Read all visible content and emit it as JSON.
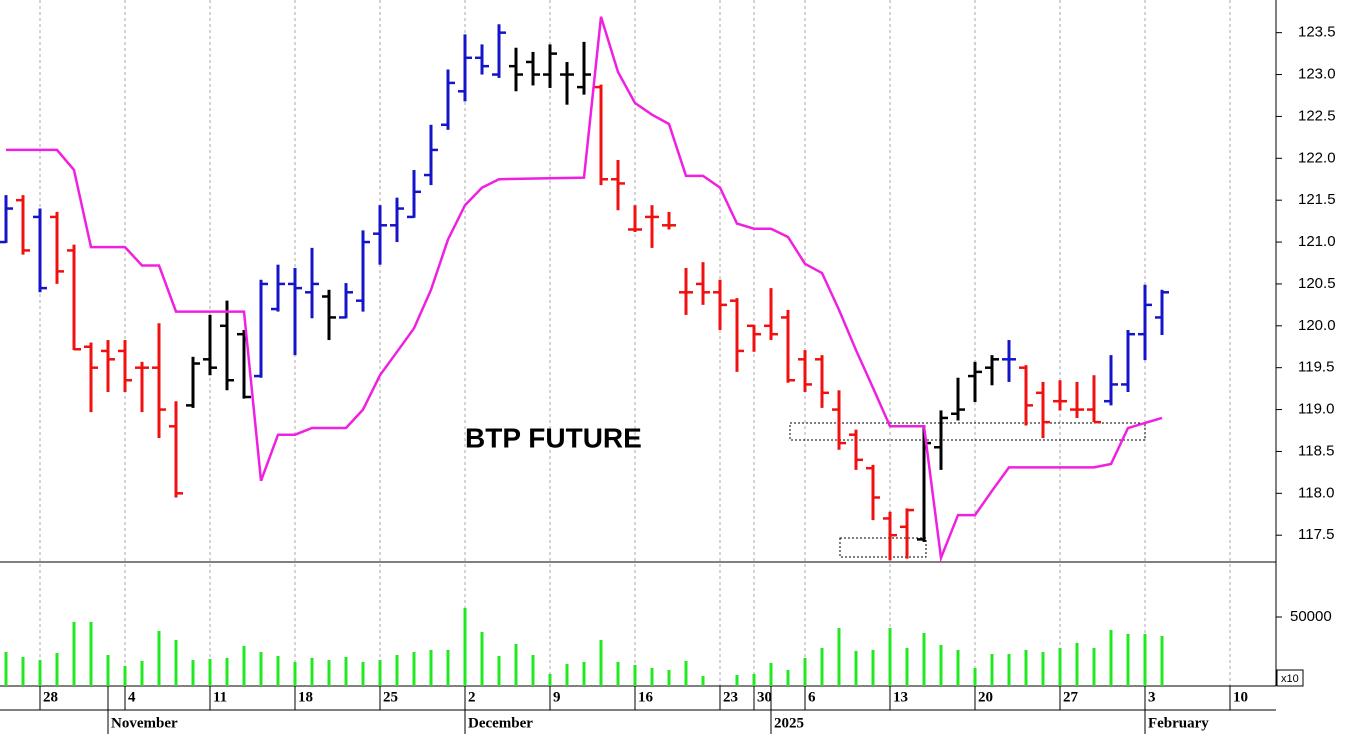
{
  "chart_data": [
    {
      "type": "ohlc",
      "title": "BTP FUTURE",
      "x": [
        -2,
        -1,
        0,
        1,
        2,
        3,
        4,
        5,
        6,
        7,
        8,
        9,
        10,
        11,
        12,
        13,
        14,
        15,
        16,
        17,
        18,
        19,
        20,
        21,
        22,
        23,
        24,
        25,
        26,
        27,
        28,
        29,
        30,
        31,
        32,
        33,
        34,
        35,
        36,
        37,
        38,
        39,
        40,
        41,
        42,
        43,
        44,
        45,
        46,
        47,
        48,
        49,
        50,
        51,
        52,
        53,
        54,
        55,
        56,
        57,
        58,
        59,
        60,
        61,
        62,
        63,
        64,
        65,
        66
      ],
      "open": [
        121.0,
        121.5,
        121.3,
        121.3,
        120.9,
        119.75,
        119.7,
        119.7,
        119.5,
        119.5,
        118.8,
        119.05,
        119.6,
        120.0,
        119.9,
        119.4,
        120.2,
        120.5,
        120.4,
        120.35,
        120.1,
        120.3,
        121.1,
        121.2,
        121.3,
        121.8,
        122.4,
        122.8,
        123.2,
        123.0,
        123.1,
        123.15,
        123.0,
        123.0,
        122.85,
        122.85,
        121.75,
        121.15,
        121.3,
        121.2,
        120.4,
        120.5,
        120.4,
        120.3,
        120.0,
        120.0,
        120.1,
        119.6,
        119.6,
        119.0,
        118.7,
        118.3,
        117.7,
        117.6,
        117.45,
        118.55,
        118.95,
        119.4,
        119.5,
        119.6,
        119.5,
        119.2,
        119.1,
        119.0,
        119.0,
        119.1,
        119.3,
        119.9,
        120.1
      ],
      "high": [
        121.56,
        121.56,
        121.4,
        121.36,
        120.97,
        119.8,
        119.83,
        119.83,
        119.57,
        120.03,
        119.1,
        119.63,
        120.13,
        120.3,
        119.95,
        120.55,
        120.73,
        120.69,
        120.93,
        120.43,
        120.51,
        121.14,
        121.44,
        121.53,
        121.86,
        122.4,
        123.06,
        123.48,
        123.36,
        123.6,
        123.32,
        123.27,
        123.36,
        123.15,
        123.39,
        122.88,
        121.98,
        121.44,
        121.44,
        121.36,
        120.69,
        120.76,
        120.55,
        120.33,
        120.01,
        120.45,
        120.19,
        119.71,
        119.65,
        119.23,
        118.76,
        118.34,
        117.78,
        117.82,
        118.81,
        118.99,
        119.38,
        119.57,
        119.65,
        119.83,
        119.53,
        119.33,
        119.35,
        119.33,
        119.41,
        119.65,
        119.95,
        120.49,
        120.43
      ],
      "low": [
        120.99,
        120.85,
        120.4,
        120.5,
        119.71,
        118.97,
        119.21,
        119.21,
        118.97,
        118.66,
        117.95,
        119.02,
        119.41,
        119.23,
        119.13,
        119.38,
        120.17,
        119.65,
        120.09,
        119.83,
        120.09,
        120.17,
        120.73,
        121.0,
        121.29,
        121.68,
        122.34,
        122.68,
        123.0,
        122.96,
        122.8,
        122.87,
        122.84,
        122.64,
        122.76,
        121.68,
        121.38,
        121.12,
        120.93,
        121.15,
        120.13,
        120.25,
        119.95,
        119.45,
        119.69,
        119.83,
        119.32,
        119.21,
        119.02,
        118.52,
        118.28,
        117.68,
        117.2,
        117.22,
        117.42,
        118.28,
        118.87,
        119.09,
        119.29,
        119.33,
        118.81,
        118.66,
        118.99,
        118.9,
        118.85,
        119.05,
        119.21,
        119.59,
        119.89
      ],
      "close": [
        121.4,
        120.9,
        120.45,
        120.65,
        119.72,
        119.5,
        119.6,
        119.35,
        119.5,
        119.0,
        118.0,
        119.55,
        119.5,
        119.35,
        119.15,
        120.5,
        120.5,
        120.45,
        120.5,
        120.1,
        120.4,
        121.0,
        121.2,
        121.4,
        121.6,
        122.1,
        122.9,
        123.2,
        123.1,
        123.5,
        123.0,
        123.0,
        123.25,
        123.0,
        123.0,
        121.75,
        121.7,
        121.15,
        121.3,
        121.2,
        120.4,
        120.4,
        120.25,
        119.7,
        119.9,
        119.9,
        119.35,
        119.3,
        119.2,
        118.6,
        118.4,
        117.95,
        117.5,
        117.8,
        118.6,
        118.9,
        119.0,
        119.45,
        119.6,
        119.6,
        119.05,
        118.85,
        119.1,
        119.0,
        118.85,
        119.3,
        119.9,
        120.25,
        120.4
      ],
      "colors": [
        "#1414c8",
        "#f01010",
        "#1414c8",
        "#f01010",
        "#f01010",
        "#f01010",
        "#f01010",
        "#f01010",
        "#f01010",
        "#f01010",
        "#f01010",
        "#000000",
        "#000000",
        "#000000",
        "#000000",
        "#1414c8",
        "#1414c8",
        "#1414c8",
        "#1414c8",
        "#000000",
        "#1414c8",
        "#1414c8",
        "#1414c8",
        "#1414c8",
        "#1414c8",
        "#1414c8",
        "#1414c8",
        "#1414c8",
        "#1414c8",
        "#1414c8",
        "#000000",
        "#000000",
        "#000000",
        "#000000",
        "#000000",
        "#f01010",
        "#f01010",
        "#f01010",
        "#f01010",
        "#f01010",
        "#f01010",
        "#f01010",
        "#f01010",
        "#f01010",
        "#f01010",
        "#f01010",
        "#f01010",
        "#f01010",
        "#f01010",
        "#f01010",
        "#f01010",
        "#f01010",
        "#f01010",
        "#f01010",
        "#000000",
        "#000000",
        "#000000",
        "#000000",
        "#000000",
        "#1414c8",
        "#f01010",
        "#f01010",
        "#f01010",
        "#f01010",
        "#f01010",
        "#1414c8",
        "#1414c8",
        "#1414c8",
        "#1414c8"
      ],
      "overlay": {
        "type": "line",
        "color": "#f020e0",
        "x": [
          -2,
          1,
          2,
          3,
          5,
          6,
          7,
          8,
          12,
          13,
          14,
          15,
          16,
          18,
          19,
          20,
          21,
          22,
          23,
          24,
          25,
          26,
          27,
          32,
          33,
          34,
          35,
          36,
          37,
          38,
          39,
          40,
          41,
          42,
          43,
          44,
          45,
          46,
          47,
          48,
          49,
          50,
          52,
          53,
          54,
          55,
          56,
          57,
          62,
          63,
          64,
          66
        ],
        "values": [
          122.1,
          122.1,
          121.86,
          120.94,
          120.94,
          120.72,
          120.72,
          120.17,
          120.17,
          118.15,
          118.7,
          118.7,
          118.78,
          118.78,
          119.0,
          119.41,
          119.69,
          119.97,
          120.43,
          121.03,
          121.44,
          121.65,
          121.75,
          121.77,
          123.69,
          123.03,
          122.66,
          122.52,
          122.41,
          121.79,
          121.79,
          121.65,
          121.22,
          121.16,
          121.16,
          121.06,
          120.74,
          120.63,
          120.19,
          119.71,
          119.26,
          118.8,
          118.8,
          117.23,
          117.74,
          117.74,
          118.03,
          118.31,
          118.31,
          118.35,
          118.78,
          118.9
        ]
      },
      "xlim": [
        -2.353,
        72.706
      ],
      "xticks": [
        {
          "value": 0,
          "label": "28"
        },
        {
          "value": 5,
          "label": "4"
        },
        {
          "value": 10,
          "label": "11"
        },
        {
          "value": 15,
          "label": "18"
        },
        {
          "value": 20,
          "label": "25"
        },
        {
          "value": 25,
          "label": "2"
        },
        {
          "value": 30,
          "label": "9"
        },
        {
          "value": 35,
          "label": "16"
        },
        {
          "value": 40,
          "label": "23"
        },
        {
          "value": 42,
          "label": "30"
        },
        {
          "value": 45,
          "label": "6"
        },
        {
          "value": 50,
          "label": "13"
        },
        {
          "value": 55,
          "label": "20"
        },
        {
          "value": 60,
          "label": "27"
        },
        {
          "value": 65,
          "label": "3"
        },
        {
          "value": 70,
          "label": "10"
        }
      ],
      "month_ticks": [
        {
          "value": 4,
          "label": "November"
        },
        {
          "value": 25,
          "label": "December"
        },
        {
          "value": 43,
          "label": "2025"
        },
        {
          "value": 65,
          "label": "February"
        }
      ],
      "ylim": [
        117.18,
        123.89
      ],
      "yticks": [
        {
          "value": 117.5,
          "label": "117.5"
        },
        {
          "value": 118,
          "label": "118.0"
        },
        {
          "value": 118.5,
          "label": "118.5"
        },
        {
          "value": 119,
          "label": "119.0"
        },
        {
          "value": 119.5,
          "label": "119.5"
        },
        {
          "value": 120,
          "label": "120.0"
        },
        {
          "value": 120.5,
          "label": "120.5"
        },
        {
          "value": 121,
          "label": "121.0"
        },
        {
          "value": 121.5,
          "label": "121.5"
        },
        {
          "value": 122,
          "label": "122.0"
        },
        {
          "value": 122.5,
          "label": "122.5"
        },
        {
          "value": 123,
          "label": "123.0"
        },
        {
          "value": 123.5,
          "label": "123.5"
        }
      ],
      "grid_x": true
    },
    {
      "type": "bar",
      "color": "#22e822",
      "x": [
        -2,
        -1,
        0,
        1,
        2,
        3,
        4,
        5,
        6,
        7,
        8,
        9,
        10,
        11,
        12,
        13,
        14,
        15,
        16,
        17,
        18,
        19,
        20,
        21,
        22,
        23,
        24,
        25,
        26,
        27,
        28,
        29,
        30,
        31,
        32,
        33,
        34,
        35,
        36,
        37,
        38,
        39,
        40,
        41,
        42,
        43,
        44,
        45,
        46,
        47,
        48,
        49,
        50,
        51,
        52,
        53,
        54,
        55,
        56,
        57,
        58,
        59,
        60,
        61,
        62,
        63,
        64,
        65,
        66
      ],
      "values": [
        24600,
        21000,
        18800,
        23900,
        46400,
        46400,
        22500,
        14500,
        18100,
        39900,
        33300,
        18800,
        19600,
        20300,
        29000,
        24600,
        21700,
        17400,
        20300,
        18800,
        21000,
        17400,
        18800,
        22500,
        24600,
        26100,
        26100,
        56500,
        39100,
        21700,
        30400,
        22500,
        8700,
        15900,
        17400,
        33300,
        17400,
        15200,
        13000,
        11600,
        18100,
        7200,
        null,
        8000,
        8700,
        16700,
        11600,
        20300,
        27500,
        42000,
        25400,
        26100,
        42000,
        27500,
        38400,
        29700,
        26100,
        13000,
        23200,
        23200,
        26100,
        24600,
        27500,
        31200,
        27500,
        40600,
        37700,
        37700,
        36200
      ],
      "ylim": [
        0,
        89850
      ],
      "yticks": [
        50000
      ],
      "scale_note": "x10"
    }
  ]
}
